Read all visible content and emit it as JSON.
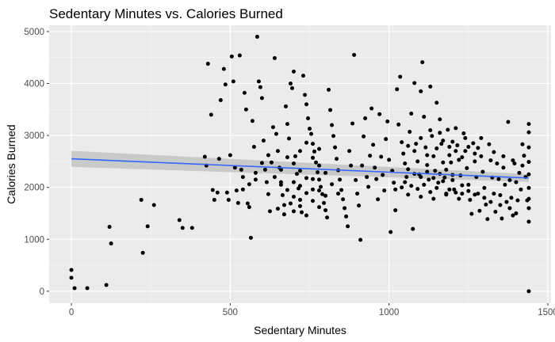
{
  "chart_data": {
    "type": "scatter",
    "title": "Sedentary Minutes vs. Calories Burned",
    "xlabel": "Sedentary Minutes",
    "ylabel": "Calories Burned",
    "xlim": [
      -70,
      1510
    ],
    "ylim": [
      -230,
      5120
    ],
    "x_ticks": [
      0,
      500,
      1000,
      1500
    ],
    "x_tick_labels": [
      "0",
      "500",
      "1000",
      "1500"
    ],
    "y_ticks": [
      0,
      1000,
      2000,
      3000,
      4000,
      5000
    ],
    "y_tick_labels": [
      "0",
      "1000",
      "2000",
      "3000",
      "4000",
      "5000"
    ],
    "grid": true,
    "colors": {
      "panel": "#ebebeb",
      "grid_major": "#ffffff",
      "grid_minor": "#f5f5f5",
      "points": "#000000",
      "trend": "#3366ff",
      "ribbon": "#bdbdbd"
    },
    "trend": {
      "method": "linear",
      "x": [
        0,
        1440
      ],
      "y": [
        2550,
        2180
      ],
      "ci_lower": [
        2395,
        2105
      ],
      "ci_upper": [
        2705,
        2255
      ]
    },
    "points": [
      [
        0,
        410
      ],
      [
        0,
        260
      ],
      [
        10,
        60
      ],
      [
        50,
        60
      ],
      [
        110,
        120
      ],
      [
        120,
        1240
      ],
      [
        125,
        920
      ],
      [
        220,
        1760
      ],
      [
        225,
        740
      ],
      [
        240,
        1250
      ],
      [
        260,
        1660
      ],
      [
        340,
        1370
      ],
      [
        350,
        1220
      ],
      [
        380,
        1220
      ],
      [
        420,
        2590
      ],
      [
        425,
        2420
      ],
      [
        430,
        4380
      ],
      [
        440,
        3400
      ],
      [
        445,
        1950
      ],
      [
        450,
        1760
      ],
      [
        460,
        1900
      ],
      [
        465,
        2550
      ],
      [
        470,
        3680
      ],
      [
        480,
        4280
      ],
      [
        485,
        3980
      ],
      [
        490,
        1900
      ],
      [
        495,
        1760
      ],
      [
        500,
        2620
      ],
      [
        505,
        4520
      ],
      [
        510,
        4040
      ],
      [
        515,
        2380
      ],
      [
        520,
        1940
      ],
      [
        525,
        1700
      ],
      [
        530,
        4540
      ],
      [
        535,
        2340
      ],
      [
        540,
        2200
      ],
      [
        545,
        3820
      ],
      [
        550,
        3500
      ],
      [
        555,
        1690
      ],
      [
        560,
        1620
      ],
      [
        565,
        1030
      ],
      [
        570,
        3280
      ],
      [
        575,
        2780
      ],
      [
        580,
        2150
      ],
      [
        585,
        4900
      ],
      [
        590,
        4040
      ],
      [
        595,
        3930
      ],
      [
        600,
        3720
      ],
      [
        605,
        2900
      ],
      [
        610,
        2340
      ],
      [
        615,
        2100
      ],
      [
        620,
        1870
      ],
      [
        625,
        1540
      ],
      [
        630,
        2480
      ],
      [
        635,
        3160
      ],
      [
        640,
        4490
      ],
      [
        645,
        3030
      ],
      [
        650,
        2700
      ],
      [
        655,
        2380
      ],
      [
        660,
        2100
      ],
      [
        665,
        1850
      ],
      [
        670,
        1660
      ],
      [
        675,
        3560
      ],
      [
        680,
        3220
      ],
      [
        685,
        2940
      ],
      [
        690,
        4000
      ],
      [
        695,
        3910
      ],
      [
        700,
        4230
      ],
      [
        705,
        2600
      ],
      [
        710,
        2260
      ],
      [
        715,
        1980
      ],
      [
        720,
        1760
      ],
      [
        725,
        1520
      ],
      [
        730,
        4150
      ],
      [
        735,
        3780
      ],
      [
        740,
        3600
      ],
      [
        745,
        3330
      ],
      [
        750,
        3130
      ],
      [
        755,
        3030
      ],
      [
        760,
        2840
      ],
      [
        765,
        2690
      ],
      [
        770,
        2480
      ],
      [
        775,
        2290
      ],
      [
        780,
        2150
      ],
      [
        785,
        2010
      ],
      [
        790,
        1870
      ],
      [
        795,
        1700
      ],
      [
        800,
        1560
      ],
      [
        805,
        1420
      ],
      [
        810,
        3880
      ],
      [
        815,
        3490
      ],
      [
        820,
        3200
      ],
      [
        825,
        2990
      ],
      [
        830,
        2770
      ],
      [
        835,
        2550
      ],
      [
        840,
        2330
      ],
      [
        845,
        2150
      ],
      [
        850,
        1950
      ],
      [
        855,
        1770
      ],
      [
        860,
        1600
      ],
      [
        865,
        1440
      ],
      [
        870,
        1250
      ],
      [
        875,
        2700
      ],
      [
        880,
        2420
      ],
      [
        885,
        3230
      ],
      [
        890,
        4550
      ],
      [
        895,
        2140
      ],
      [
        900,
        1880
      ],
      [
        905,
        1650
      ],
      [
        910,
        990
      ],
      [
        915,
        2420
      ],
      [
        920,
        2980
      ],
      [
        925,
        3330
      ],
      [
        930,
        2200
      ],
      [
        935,
        2010
      ],
      [
        940,
        2610
      ],
      [
        945,
        3520
      ],
      [
        950,
        2820
      ],
      [
        955,
        2380
      ],
      [
        960,
        2160
      ],
      [
        965,
        1770
      ],
      [
        970,
        3410
      ],
      [
        975,
        2590
      ],
      [
        980,
        2240
      ],
      [
        985,
        1940
      ],
      [
        990,
        2930
      ],
      [
        995,
        3270
      ],
      [
        1000,
        2530
      ],
      [
        1005,
        1140
      ],
      [
        1010,
        2320
      ],
      [
        1015,
        2090
      ],
      [
        1020,
        1560
      ],
      [
        1025,
        3890
      ],
      [
        1030,
        3210
      ],
      [
        1035,
        4130
      ],
      [
        1040,
        2870
      ],
      [
        1045,
        2650
      ],
      [
        1050,
        2460
      ],
      [
        1055,
        2200
      ],
      [
        1060,
        1860
      ],
      [
        1065,
        3070
      ],
      [
        1070,
        3420
      ],
      [
        1075,
        1200
      ],
      [
        1080,
        4010
      ],
      [
        1085,
        2840
      ],
      [
        1090,
        2500
      ],
      [
        1095,
        2250
      ],
      [
        1100,
        3850
      ],
      [
        1105,
        4410
      ],
      [
        1110,
        3360
      ],
      [
        1115,
        2770
      ],
      [
        1120,
        2430
      ],
      [
        1125,
        2150
      ],
      [
        1130,
        3940
      ],
      [
        1135,
        2990
      ],
      [
        1140,
        2600
      ],
      [
        1145,
        2320
      ],
      [
        1150,
        3630
      ],
      [
        1155,
        2090
      ],
      [
        1160,
        3310
      ],
      [
        1165,
        2840
      ],
      [
        1170,
        2480
      ],
      [
        1175,
        2190
      ],
      [
        1180,
        1860
      ],
      [
        1185,
        3110
      ],
      [
        1190,
        2780
      ],
      [
        1195,
        2480
      ],
      [
        1200,
        2240
      ],
      [
        1205,
        1960
      ],
      [
        1210,
        3140
      ],
      [
        1215,
        2810
      ],
      [
        1220,
        2530
      ],
      [
        1225,
        2230
      ],
      [
        1230,
        1880
      ],
      [
        1235,
        3040
      ],
      [
        1240,
        2700
      ],
      [
        1245,
        2370
      ],
      [
        1250,
        2050
      ],
      [
        1255,
        1760
      ],
      [
        1260,
        1490
      ],
      [
        1265,
        2850
      ],
      [
        1270,
        2500
      ],
      [
        1275,
        2200
      ],
      [
        1280,
        1880
      ],
      [
        1285,
        1550
      ],
      [
        1290,
        2600
      ],
      [
        1295,
        2300
      ],
      [
        1300,
        1990
      ],
      [
        1305,
        1670
      ],
      [
        1310,
        1390
      ],
      [
        1315,
        2830
      ],
      [
        1320,
        2520
      ],
      [
        1325,
        2190
      ],
      [
        1330,
        1880
      ],
      [
        1335,
        1530
      ],
      [
        1340,
        2460
      ],
      [
        1345,
        2160
      ],
      [
        1350,
        1850
      ],
      [
        1355,
        1400
      ],
      [
        1360,
        2380
      ],
      [
        1365,
        2050
      ],
      [
        1370,
        1720
      ],
      [
        1375,
        3260
      ],
      [
        1380,
        2140
      ],
      [
        1385,
        1800
      ],
      [
        1390,
        1460
      ],
      [
        1395,
        2460
      ],
      [
        1400,
        2100
      ],
      [
        1405,
        1750
      ],
      [
        1410,
        2280
      ],
      [
        1415,
        1960
      ],
      [
        1420,
        2830
      ],
      [
        1425,
        2610
      ],
      [
        1430,
        2200
      ],
      [
        1435,
        1750
      ],
      [
        1440,
        3220
      ],
      [
        1440,
        3060
      ],
      [
        1440,
        2770
      ],
      [
        1440,
        2490
      ],
      [
        1440,
        2250
      ],
      [
        1440,
        1990
      ],
      [
        1440,
        1780
      ],
      [
        1440,
        1600
      ],
      [
        1440,
        1340
      ],
      [
        1440,
        0
      ],
      [
        640,
        2200
      ],
      [
        660,
        2050
      ],
      [
        680,
        1950
      ],
      [
        700,
        2100
      ],
      [
        720,
        2320
      ],
      [
        740,
        2180
      ],
      [
        760,
        1960
      ],
      [
        780,
        2420
      ],
      [
        800,
        2280
      ],
      [
        820,
        2060
      ],
      [
        840,
        1880
      ],
      [
        700,
        1820
      ],
      [
        720,
        2030
      ],
      [
        740,
        1890
      ],
      [
        760,
        2160
      ],
      [
        780,
        1940
      ],
      [
        800,
        1840
      ],
      [
        660,
        2340
      ],
      [
        680,
        2580
      ],
      [
        700,
        2460
      ],
      [
        720,
        2700
      ],
      [
        740,
        2860
      ],
      [
        760,
        2570
      ],
      [
        780,
        2740
      ],
      [
        620,
        2620
      ],
      [
        600,
        2470
      ],
      [
        580,
        2280
      ],
      [
        560,
        2060
      ],
      [
        540,
        1960
      ],
      [
        700,
        1540
      ],
      [
        720,
        1640
      ],
      [
        740,
        1460
      ],
      [
        760,
        1740
      ],
      [
        780,
        1620
      ],
      [
        650,
        1590
      ],
      [
        670,
        1480
      ],
      [
        690,
        1690
      ],
      [
        1050,
        2100
      ],
      [
        1070,
        2030
      ],
      [
        1090,
        1970
      ],
      [
        1110,
        2050
      ],
      [
        1130,
        1910
      ],
      [
        1150,
        1990
      ],
      [
        1170,
        2120
      ],
      [
        1190,
        1960
      ],
      [
        1210,
        1900
      ],
      [
        1230,
        2040
      ],
      [
        1250,
        1930
      ],
      [
        1270,
        1860
      ],
      [
        1100,
        2200
      ],
      [
        1120,
        2300
      ],
      [
        1140,
        2180
      ],
      [
        1160,
        2260
      ],
      [
        1180,
        2340
      ],
      [
        1200,
        2140
      ],
      [
        1060,
        2350
      ],
      [
        1080,
        2260
      ],
      [
        1040,
        2000
      ],
      [
        1020,
        1960
      ],
      [
        1100,
        1820
      ],
      [
        1140,
        1780
      ],
      [
        1180,
        1880
      ],
      [
        1220,
        1780
      ],
      [
        1300,
        1800
      ],
      [
        1320,
        1720
      ],
      [
        1350,
        1660
      ],
      [
        1380,
        1600
      ],
      [
        1400,
        1500
      ],
      [
        1150,
        2750
      ],
      [
        1170,
        2900
      ],
      [
        1190,
        2620
      ],
      [
        1210,
        2700
      ],
      [
        1230,
        2580
      ],
      [
        1250,
        2780
      ],
      [
        1270,
        2650
      ],
      [
        1290,
        2950
      ],
      [
        1120,
        2620
      ],
      [
        1080,
        2700
      ],
      [
        1060,
        2800
      ],
      [
        1100,
        2950
      ],
      [
        1130,
        3100
      ],
      [
        1160,
        3050
      ],
      [
        1200,
        2880
      ],
      [
        1240,
        2950
      ],
      [
        1280,
        2760
      ],
      [
        1330,
        2680
      ],
      [
        1360,
        2600
      ],
      [
        1390,
        2520
      ],
      [
        1420,
        2420
      ]
    ]
  }
}
